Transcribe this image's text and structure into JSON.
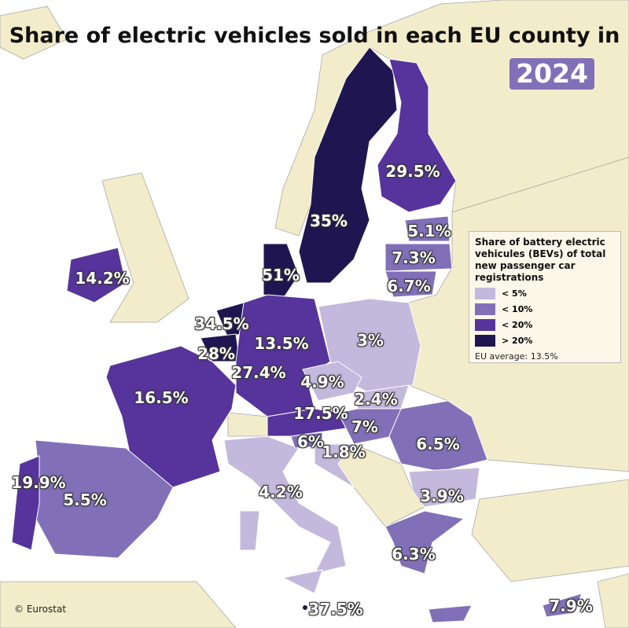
{
  "title": "Share of electric vehicles sold in each EU county in",
  "year": "2024",
  "legend": {
    "title": "Share of battery electric vehicules (BEVs) of total new passenger car registrations",
    "classes": [
      {
        "label": "< 5%",
        "color": "#c3b9dd"
      },
      {
        "label": "< 10%",
        "color": "#8170b8"
      },
      {
        "label": "< 20%",
        "color": "#56349b"
      },
      {
        "label": "> 20%",
        "color": "#1f1651"
      }
    ],
    "average": "EU average: 13.5%"
  },
  "colors": {
    "non_eu_land": "#f3ecca",
    "sea": "#ffffff",
    "accent": "#8170b8"
  },
  "labels": [
    "29.5%",
    "35%",
    "5.1%",
    "7.3%",
    "6.7%",
    "14.2%",
    "51%",
    "34.5%",
    "28%",
    "13.5%",
    "3%",
    "27.4%",
    "4.9%",
    "16.5%",
    "2.4%",
    "17.5%",
    "7%",
    "6%",
    "1.8%",
    "6.5%",
    "19.9%",
    "5.5%",
    "4.2%",
    "3.9%",
    "6.3%",
    "37.5%",
    "7.9%"
  ],
  "copyright": "© Eurostat"
}
